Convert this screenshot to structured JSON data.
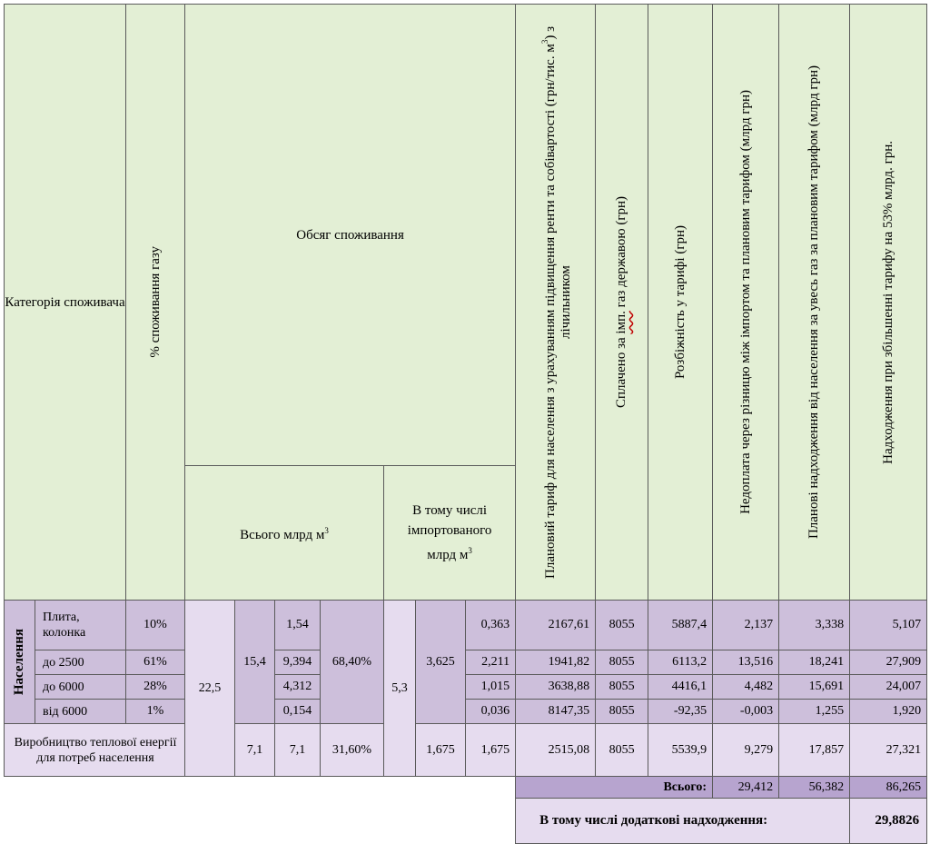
{
  "header": {
    "category": "Категорія споживача",
    "gas_pct": "% споживання газу",
    "volume": "Обсяг споживання",
    "total_bcm": "Всього млрд м",
    "incl_import_1": "В тому числі",
    "incl_import_2": "імпортованого",
    "incl_import_3": "млрд м",
    "cube": "3",
    "tariff_planned": "Плановий тариф для населення з урахуванням підвищення ренти та собівартості (грн/тис. м",
    "tariff_planned_suffix": ")  з лічильником",
    "paid_by_state_a": "Сплачено за ",
    "paid_by_state_u": "імп.",
    "paid_by_state_b": " газ державою (грн)",
    "tariff_diff": "Розбіжність у тарифі (грн)",
    "underpay": "Недоплата через різницю між імпортом та плановим тарифом (млрд грн)",
    "planned_revenue": "Планові надходження від населення за увесь газ за плановим тарифом (млрд грн)",
    "revenue_53": "Надходження при збільшенні тарифу на 53% млрд. грн."
  },
  "population_label": "Населення",
  "rows": [
    {
      "category": "Плита, колонка",
      "gas_pct": "10%",
      "sub_total": "1,54",
      "import_sub": "0,363",
      "tariff": "2167,61",
      "paid": "8055",
      "diff": "5887,4",
      "underpay": "2,137",
      "planned": "3,338",
      "revenue53": "5,107"
    },
    {
      "category": "до 2500",
      "gas_pct": "61%",
      "sub_total": "9,394",
      "import_sub": "2,211",
      "tariff": "1941,82",
      "paid": "8055",
      "diff": "6113,2",
      "underpay": "13,516",
      "planned": "18,241",
      "revenue53": "27,909"
    },
    {
      "category": "до 6000",
      "gas_pct": "28%",
      "sub_total": "4,312",
      "import_sub": "1,015",
      "tariff": "3638,88",
      "paid": "8055",
      "diff": "4416,1",
      "underpay": "4,482",
      "planned": "15,691",
      "revenue53": "24,007"
    },
    {
      "category": "від 6000",
      "gas_pct": "1%",
      "sub_total": "0,154",
      "import_sub": "0,036",
      "tariff": "8147,35",
      "paid": "8055",
      "diff": "-92,35",
      "underpay": "-0,003",
      "planned": "1,255",
      "revenue53": "1,920"
    }
  ],
  "merged": {
    "grand_total": "22,5",
    "pop_total": "15,4",
    "pop_share": "68,40%",
    "import_total": "5,3",
    "pop_import": "3,625"
  },
  "heating": {
    "category": "Виробництво теплової енергії для потреб населення",
    "total": "7,1",
    "sub_total": "7,1",
    "share": "31,60%",
    "import": "1,675",
    "import_sub": "1,675",
    "tariff": "2515,08",
    "paid": "8055",
    "diff": "5539,9",
    "underpay": "9,279",
    "planned": "17,857",
    "revenue53": "27,321"
  },
  "totals": {
    "label": "Всього:",
    "underpay": "29,412",
    "planned": "56,382",
    "revenue53": "86,265"
  },
  "additional": {
    "label": "В тому числі додаткові надходження:",
    "value": "29,8826"
  },
  "colors": {
    "header_bg": "#e3efd5",
    "row_dark": "#cdbfdb",
    "row_light": "#e6dcef",
    "total_bg": "#b7a4cf"
  }
}
